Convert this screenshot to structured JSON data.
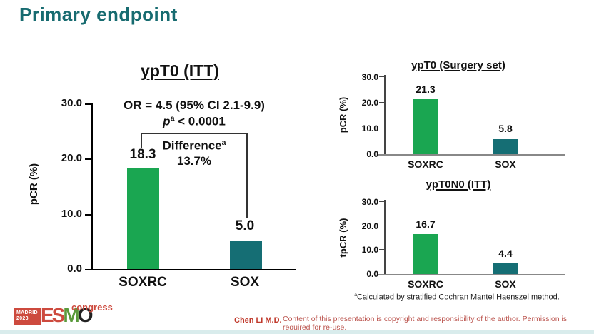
{
  "slide": {
    "title": "Primary endpoint",
    "author": "Chen LI M.D.",
    "copyright": "Content of this presentation is copyright and responsibility of the author. Permission is required for re-use.",
    "footnote_marker": "a",
    "footnote": "Calculated by stratified Cochran Mantel Haenszel method."
  },
  "logo": {
    "city": "MADRID",
    "year": "2023",
    "letters": {
      "e": "E",
      "s": "S",
      "m": "M",
      "o": "O"
    },
    "event": "congress"
  },
  "colors": {
    "accent_teal": "#176b70",
    "bar_soxrc_green": "#1aa651",
    "bar_sox_teal": "#156e74",
    "logo_red": "#cd4a3e",
    "text_red": "#c0392b"
  },
  "chart_data": [
    {
      "type": "bar",
      "title": "ypT0 (ITT)",
      "ylabel": "pCR (%)",
      "ylim": [
        0,
        30
      ],
      "yticks": [
        "30.0",
        "20.0",
        "10.0",
        "0.0"
      ],
      "categories": [
        "SOXRC",
        "SOX"
      ],
      "values": [
        18.3,
        5.0
      ],
      "value_labels": [
        "18.3",
        "5.0"
      ],
      "legend": null,
      "grid": false,
      "annotations": {
        "or_line": "OR = 4.5 (95% CI 2.1-9.9)",
        "p_symbol": "p",
        "p_sup": "a",
        "p_rest": "< 0.0001",
        "difference_label": "Difference",
        "difference_sup": "a",
        "difference_value": "13.7%"
      }
    },
    {
      "type": "bar",
      "title": "ypT0 (Surgery set)",
      "ylabel": "pCR (%)",
      "ylim": [
        0,
        30
      ],
      "yticks": [
        "30.0",
        "20.0",
        "10.0",
        "0.0"
      ],
      "categories": [
        "SOXRC",
        "SOX"
      ],
      "values": [
        21.3,
        5.8
      ],
      "value_labels": [
        "21.3",
        "5.8"
      ],
      "grid": false
    },
    {
      "type": "bar",
      "title": "ypT0N0 (ITT)",
      "ylabel": "tpCR (%)",
      "ylim": [
        0,
        30
      ],
      "yticks": [
        "30.0",
        "20.0",
        "10.0",
        "0.0"
      ],
      "categories": [
        "SOXRC",
        "SOX"
      ],
      "values": [
        16.7,
        4.4
      ],
      "value_labels": [
        "16.7",
        "4.4"
      ],
      "grid": false
    }
  ]
}
